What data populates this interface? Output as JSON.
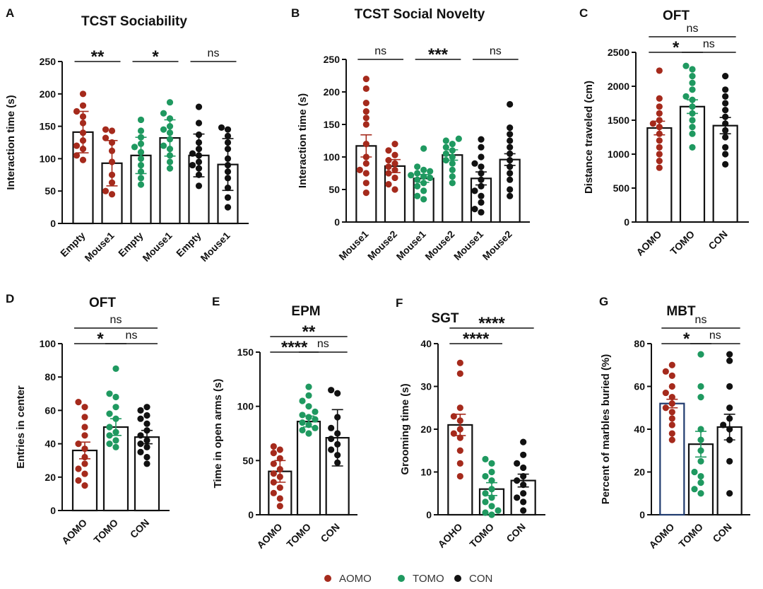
{
  "colors": {
    "AOMO": "#a52a1c",
    "TOMO": "#1f9960",
    "CON": "#111111",
    "navy_bar": "#1f3a6e"
  },
  "legend": [
    {
      "label": "AOMO",
      "color": "#a52a1c"
    },
    {
      "label": "TOMO",
      "color": "#1f9960"
    },
    {
      "label": "CON",
      "color": "#111111"
    }
  ],
  "chart_data": [
    {
      "letter": "A",
      "title": "TCST  Sociability",
      "type": "bar",
      "ylabel": "Interaction time (s)",
      "ylim": [
        0,
        250
      ],
      "yticks": [
        0,
        50,
        100,
        150,
        200,
        250
      ],
      "bars": [
        {
          "label": "Empty",
          "group": "AOMO",
          "mean": 141,
          "err": 32,
          "points": [
            200,
            182,
            173,
            165,
            155,
            140,
            128,
            120,
            115,
            105,
            98
          ]
        },
        {
          "label": "Mouse1",
          "group": "AOMO",
          "mean": 93,
          "err": 35,
          "points": [
            145,
            143,
            132,
            125,
            112,
            95,
            75,
            63,
            50,
            45
          ]
        },
        {
          "label": "Empty",
          "group": "TOMO",
          "mean": 105,
          "err": 28,
          "points": [
            160,
            143,
            133,
            123,
            118,
            110,
            100,
            90,
            80,
            70,
            60
          ]
        },
        {
          "label": "Mouse1",
          "group": "TOMO",
          "mean": 132,
          "err": 28,
          "points": [
            187,
            170,
            162,
            150,
            145,
            140,
            130,
            120,
            115,
            105,
            95,
            85
          ]
        },
        {
          "label": "Empty",
          "group": "CON",
          "mean": 105,
          "err": 33,
          "points": [
            180,
            155,
            137,
            125,
            115,
            108,
            105,
            95,
            90,
            85,
            75,
            58
          ]
        },
        {
          "label": "Mouse1",
          "group": "CON",
          "mean": 91,
          "err": 40,
          "points": [
            148,
            145,
            135,
            125,
            115,
            100,
            90,
            80,
            70,
            55,
            40,
            25
          ]
        }
      ],
      "sig": [
        {
          "from": 0,
          "to": 1,
          "text": "**",
          "level": 0
        },
        {
          "from": 2,
          "to": 3,
          "text": "*",
          "level": 0
        },
        {
          "from": 4,
          "to": 5,
          "text": "ns",
          "level": 0
        }
      ]
    },
    {
      "letter": "B",
      "title": "TCST  Social Novelty",
      "type": "bar",
      "ylabel": "Interaction time (s)",
      "ylim": [
        0,
        250
      ],
      "yticks": [
        0,
        50,
        100,
        150,
        200,
        250
      ],
      "bars": [
        {
          "label": "Mouse1",
          "group": "AOMO",
          "mean": 117,
          "err": 17,
          "points": [
            220,
            205,
            183,
            170,
            160,
            150,
            120,
            100,
            90,
            80,
            75,
            60,
            45
          ]
        },
        {
          "label": "Mouse2",
          "group": "AOMO",
          "mean": 86,
          "err": 10,
          "points": [
            120,
            110,
            103,
            95,
            90,
            85,
            80,
            75,
            68,
            58,
            50
          ]
        },
        {
          "label": "Mouse1",
          "group": "TOMO",
          "mean": 67,
          "err": 6,
          "points": [
            113,
            85,
            80,
            78,
            75,
            72,
            70,
            68,
            65,
            60,
            55,
            48,
            40,
            35
          ]
        },
        {
          "label": "Mouse2",
          "group": "TOMO",
          "mean": 103,
          "err": 8,
          "points": [
            128,
            125,
            120,
            115,
            110,
            105,
            100,
            95,
            90,
            80,
            70,
            60
          ]
        },
        {
          "label": "Mouse1",
          "group": "CON",
          "mean": 67,
          "err": 10,
          "points": [
            127,
            115,
            100,
            90,
            85,
            75,
            65,
            55,
            48,
            40,
            30,
            20,
            15
          ]
        },
        {
          "label": "Mouse2",
          "group": "CON",
          "mean": 96,
          "err": 9,
          "points": [
            181,
            145,
            135,
            125,
            115,
            105,
            95,
            85,
            75,
            65,
            50,
            40
          ]
        }
      ],
      "sig": [
        {
          "from": 0,
          "to": 1,
          "text": "ns",
          "level": 0
        },
        {
          "from": 2,
          "to": 3,
          "text": "***",
          "level": 0
        },
        {
          "from": 4,
          "to": 5,
          "text": "ns",
          "level": 0
        }
      ]
    },
    {
      "letter": "C",
      "title": "OFT",
      "type": "bar",
      "ylabel": "Distance traveled (cm)",
      "ylim": [
        0,
        2500
      ],
      "yticks": [
        0,
        500,
        1000,
        1500,
        2000,
        2500
      ],
      "bars": [
        {
          "label": "AOMO",
          "group": "AOMO",
          "mean": 1385,
          "err": 100,
          "points": [
            2230,
            1820,
            1700,
            1600,
            1500,
            1450,
            1400,
            1300,
            1200,
            1100,
            1000,
            900,
            800
          ]
        },
        {
          "label": "TOMO",
          "group": "TOMO",
          "mean": 1700,
          "err": 100,
          "points": [
            2300,
            2250,
            2150,
            2050,
            1950,
            1850,
            1800,
            1700,
            1600,
            1500,
            1400,
            1300,
            1100
          ]
        },
        {
          "label": "CON",
          "group": "CON",
          "mean": 1420,
          "err": 120,
          "points": [
            2150,
            1950,
            1850,
            1750,
            1650,
            1550,
            1450,
            1350,
            1250,
            1100,
            1000,
            850
          ]
        }
      ],
      "sig": [
        {
          "from": 0,
          "to": 1,
          "text": "*",
          "level": 0
        },
        {
          "from": 1,
          "to": 2,
          "text": "ns",
          "level": 0
        },
        {
          "from": 0,
          "to": 2,
          "text": "ns",
          "level": 1
        }
      ]
    },
    {
      "letter": "D",
      "title": "OFT",
      "type": "bar",
      "ylabel": "Entries in center",
      "ylim": [
        0,
        100
      ],
      "yticks": [
        0,
        20,
        40,
        60,
        80,
        100
      ],
      "bars": [
        {
          "label": "AOMO",
          "group": "AOMO",
          "mean": 36,
          "err": 5,
          "points": [
            65,
            62,
            56,
            50,
            45,
            40,
            37,
            32,
            28,
            25,
            22,
            18,
            15
          ]
        },
        {
          "label": "TOMO",
          "group": "TOMO",
          "mean": 50,
          "err": 5,
          "points": [
            85,
            70,
            68,
            62,
            58,
            55,
            50,
            47,
            45,
            42,
            40,
            38
          ]
        },
        {
          "label": "CON",
          "group": "CON",
          "mean": 44,
          "err": 4,
          "points": [
            62,
            60,
            57,
            55,
            52,
            48,
            45,
            42,
            40,
            38,
            35,
            32,
            28
          ]
        }
      ],
      "sig": [
        {
          "from": 0,
          "to": 1,
          "text": "*",
          "level": 0
        },
        {
          "from": 1,
          "to": 2,
          "text": "ns",
          "level": 0
        },
        {
          "from": 0,
          "to": 2,
          "text": "ns",
          "level": 1
        }
      ]
    },
    {
      "letter": "E",
      "title": "EPM",
      "type": "bar",
      "ylabel": "Time in open arms (s)",
      "ylim": [
        0,
        150
      ],
      "yticks": [
        0,
        50,
        100,
        150
      ],
      "bars": [
        {
          "label": "AOMO",
          "group": "AOMO",
          "mean": 40,
          "err": 10,
          "points": [
            63,
            60,
            57,
            52,
            47,
            42,
            38,
            35,
            30,
            25,
            20,
            15,
            8
          ]
        },
        {
          "label": "TOMO",
          "group": "TOMO",
          "mean": 86,
          "err": 5,
          "points": [
            118,
            110,
            105,
            100,
            95,
            92,
            90,
            88,
            85,
            83,
            80,
            78,
            75
          ]
        },
        {
          "label": "CON",
          "group": "CON",
          "mean": 71,
          "err": 26,
          "points": [
            115,
            112,
            90,
            80,
            75,
            70,
            65,
            60,
            55,
            48
          ]
        }
      ],
      "sig": [
        {
          "from": 0,
          "to": 1,
          "text": "****",
          "level": 0
        },
        {
          "from": 1,
          "to": 2,
          "text": "ns",
          "level": 0
        },
        {
          "from": 0,
          "to": 2,
          "text": "**",
          "level": 1
        }
      ]
    },
    {
      "letter": "F",
      "title": "SGT",
      "type": "bar",
      "ylabel": "Grooming time (s)",
      "ylim": [
        0,
        40
      ],
      "yticks": [
        0,
        10,
        20,
        30,
        40
      ],
      "bars": [
        {
          "label": "AOHO",
          "group": "AOMO",
          "mean": 21,
          "err": 2.5,
          "points": [
            35.5,
            33,
            25,
            23,
            22,
            20,
            19,
            18,
            15,
            12,
            9
          ]
        },
        {
          "label": "TOMO",
          "group": "TOMO",
          "mean": 6,
          "err": 1.5,
          "points": [
            13,
            12,
            10,
            9,
            8,
            6,
            5,
            4,
            3,
            2,
            1,
            0.5,
            0
          ]
        },
        {
          "label": "CON",
          "group": "CON",
          "mean": 8,
          "err": 1.5,
          "points": [
            17,
            14,
            12,
            11,
            9,
            8,
            7,
            5,
            4,
            3,
            1
          ]
        }
      ],
      "sig": [
        {
          "from": 0,
          "to": 1,
          "text": "****",
          "level": 0
        },
        {
          "from": 0,
          "to": 2,
          "text": "****",
          "level": 1
        }
      ]
    },
    {
      "letter": "G",
      "title": "MBT",
      "type": "bar",
      "ylabel": "Percent of marbles buried (%)",
      "ylim": [
        0,
        80
      ],
      "yticks": [
        0,
        20,
        40,
        60,
        80
      ],
      "bars": [
        {
          "label": "AOMO",
          "group": "AOMO",
          "mean": 52,
          "err": 2,
          "points": [
            70,
            67,
            65,
            60,
            57,
            55,
            52,
            50,
            48,
            45,
            42,
            38,
            35
          ]
        },
        {
          "label": "TOMO",
          "group": "TOMO",
          "mean": 33,
          "err": 6,
          "points": [
            75,
            60,
            55,
            40,
            35,
            30,
            25,
            20,
            18,
            15,
            12,
            10
          ]
        },
        {
          "label": "CON",
          "group": "CON",
          "mean": 41,
          "err": 6,
          "points": [
            75,
            72,
            60,
            50,
            45,
            42,
            40,
            35,
            25,
            10
          ]
        }
      ],
      "sig": [
        {
          "from": 0,
          "to": 1,
          "text": "*",
          "level": 0
        },
        {
          "from": 1,
          "to": 2,
          "text": "ns",
          "level": 0
        },
        {
          "from": 0,
          "to": 2,
          "text": "ns",
          "level": 1
        }
      ]
    }
  ]
}
